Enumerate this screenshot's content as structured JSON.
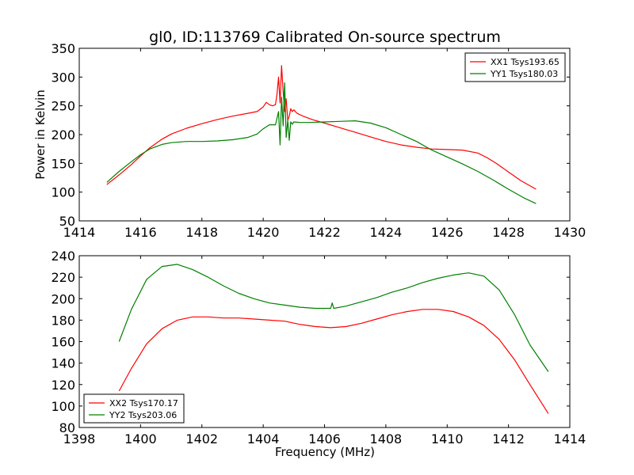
{
  "chart_data": [
    {
      "type": "line",
      "title": "gl0, ID:113769 Calibrated On-source spectrum",
      "xlabel": "",
      "ylabel": "Power in Kelvin",
      "xlim": [
        1414,
        1430
      ],
      "ylim": [
        50,
        350
      ],
      "xticks": [
        1414,
        1416,
        1418,
        1420,
        1422,
        1424,
        1426,
        1428,
        1430
      ],
      "yticks": [
        50,
        100,
        150,
        200,
        250,
        300,
        350
      ],
      "grid": false,
      "legend_position": "top-right",
      "series": [
        {
          "name": "XX1 Tsys193.65",
          "color": "#ff0000",
          "x": [
            1414.9,
            1415.3,
            1415.7,
            1416.0,
            1416.3,
            1416.7,
            1417.0,
            1417.5,
            1418.0,
            1418.5,
            1419.0,
            1419.5,
            1419.8,
            1420.0,
            1420.1,
            1420.2,
            1420.3,
            1420.4,
            1420.45,
            1420.5,
            1420.55,
            1420.6,
            1420.65,
            1420.7,
            1420.75,
            1420.8,
            1420.85,
            1420.9,
            1420.95,
            1421.0,
            1421.1,
            1421.3,
            1421.6,
            1422.0,
            1422.5,
            1423.0,
            1423.5,
            1424.0,
            1424.5,
            1425.0,
            1425.5,
            1426.0,
            1426.5,
            1427.0,
            1427.3,
            1427.6,
            1428.0,
            1428.4,
            1428.9
          ],
          "y": [
            113,
            130,
            148,
            163,
            177,
            192,
            201,
            211,
            219,
            226,
            232,
            237,
            240,
            248,
            256,
            252,
            250,
            252,
            270,
            300,
            255,
            320,
            275,
            240,
            262,
            225,
            232,
            245,
            240,
            243,
            237,
            232,
            226,
            220,
            212,
            204,
            196,
            188,
            182,
            178,
            175,
            174,
            173,
            168,
            160,
            150,
            135,
            120,
            105
          ]
        },
        {
          "name": "YY1 Tsys180.03",
          "color": "#008000",
          "x": [
            1414.9,
            1415.3,
            1415.7,
            1416.0,
            1416.3,
            1416.7,
            1417.0,
            1417.5,
            1418.0,
            1418.5,
            1419.0,
            1419.5,
            1419.8,
            1420.0,
            1420.2,
            1420.4,
            1420.5,
            1420.55,
            1420.6,
            1420.65,
            1420.7,
            1420.75,
            1420.8,
            1420.85,
            1420.9,
            1420.95,
            1421.0,
            1421.2,
            1421.5,
            1422.0,
            1422.5,
            1423.0,
            1423.5,
            1424.0,
            1424.5,
            1425.0,
            1425.5,
            1426.0,
            1426.5,
            1427.0,
            1427.5,
            1428.0,
            1428.5,
            1428.9
          ],
          "y": [
            117,
            136,
            153,
            165,
            175,
            183,
            186,
            188,
            188,
            189,
            191,
            195,
            201,
            210,
            217,
            217,
            240,
            182,
            265,
            215,
            290,
            195,
            225,
            190,
            222,
            218,
            222,
            221,
            221,
            222,
            223,
            224,
            220,
            212,
            200,
            188,
            173,
            161,
            149,
            136,
            121,
            105,
            90,
            80
          ]
        }
      ]
    },
    {
      "type": "line",
      "title": "",
      "xlabel": "Frequency (MHz)",
      "ylabel": "",
      "xlim": [
        1398,
        1414
      ],
      "ylim": [
        80,
        240
      ],
      "xticks": [
        1398,
        1400,
        1402,
        1404,
        1406,
        1408,
        1410,
        1412,
        1414
      ],
      "yticks": [
        80,
        100,
        120,
        140,
        160,
        180,
        200,
        220,
        240
      ],
      "grid": false,
      "legend_position": "bottom-left",
      "series": [
        {
          "name": "XX2 Tsys170.17",
          "color": "#ff0000",
          "x": [
            1399.3,
            1399.7,
            1400.2,
            1400.7,
            1401.2,
            1401.7,
            1402.2,
            1402.7,
            1403.2,
            1403.7,
            1404.2,
            1404.7,
            1405.2,
            1405.7,
            1406.2,
            1406.7,
            1407.2,
            1407.7,
            1408.2,
            1408.7,
            1409.2,
            1409.7,
            1410.2,
            1410.7,
            1411.2,
            1411.7,
            1412.2,
            1412.7,
            1413.3
          ],
          "y": [
            114,
            135,
            158,
            172,
            180,
            183,
            183,
            182,
            182,
            181,
            180,
            179,
            176,
            174,
            173,
            174,
            177,
            181,
            185,
            188,
            190,
            190,
            188,
            183,
            175,
            162,
            143,
            120,
            93
          ]
        },
        {
          "name": "YY2 Tsys203.06",
          "color": "#008000",
          "x": [
            1399.3,
            1399.7,
            1400.2,
            1400.7,
            1401.2,
            1401.7,
            1402.2,
            1402.7,
            1403.2,
            1403.7,
            1404.2,
            1404.7,
            1405.2,
            1405.7,
            1406.2,
            1406.25,
            1406.3,
            1406.7,
            1407.2,
            1407.7,
            1408.2,
            1408.7,
            1409.2,
            1409.7,
            1410.2,
            1410.7,
            1411.2,
            1411.7,
            1412.2,
            1412.7,
            1413.3
          ],
          "y": [
            160,
            190,
            218,
            230,
            232,
            227,
            220,
            212,
            205,
            200,
            196,
            194,
            192,
            191,
            191,
            196,
            191,
            193,
            197,
            201,
            206,
            210,
            215,
            219,
            222,
            224,
            221,
            208,
            185,
            157,
            132
          ]
        }
      ]
    }
  ]
}
